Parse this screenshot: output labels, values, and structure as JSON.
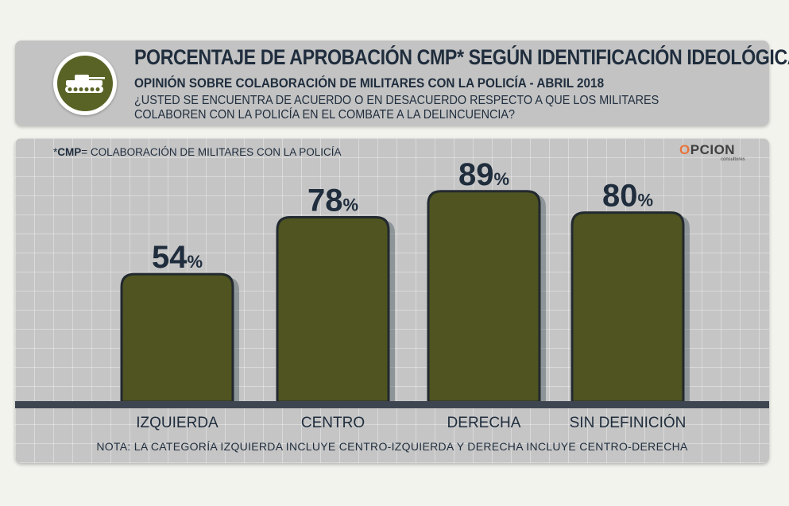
{
  "header": {
    "title": "PORCENTAJE DE APROBACIÓN CMP* SEGÚN IDENTIFICACIÓN IDEOLÓGICA",
    "subtitle": "OPINIÓN SOBRE COLABORACIÓN DE MILITARES CON LA POLICÍA - ABRIL 2018",
    "question": "¿USTED SE ENCUENTRA DE ACUERDO O EN DESACUERDO RESPECTO A QUE LOS MILITARES COLABOREN CON LA POLICÍA EN EL COMBATE A LA DELINCUENCIA?",
    "icon": "tank-icon"
  },
  "footnote": {
    "prefix": "*",
    "abbr": "CMP",
    "text": "= COLABORACIÓN DE MILITARES CON LA POLICÍA"
  },
  "brand": {
    "name_first": "O",
    "name_rest": "PCION",
    "sub": "consultores"
  },
  "note": "NOTA: LA CATEGORÍA IZQUIERDA INCLUYE CENTRO-IZQUIERDA Y DERECHA INCLUYE CENTRO-DERECHA",
  "colors": {
    "bar": "#4f5420",
    "bar_stroke": "#22292f",
    "text": "#1f2d3d",
    "brand_accent": "#e8743b"
  },
  "chart_data": {
    "type": "bar",
    "categories": [
      "IZQUIERDA",
      "CENTRO",
      "DERECHA",
      "SIN DEFINICIÓN"
    ],
    "values": [
      54,
      78,
      89,
      80
    ],
    "unit": "%",
    "ylim": [
      0,
      100
    ],
    "grid": true
  }
}
